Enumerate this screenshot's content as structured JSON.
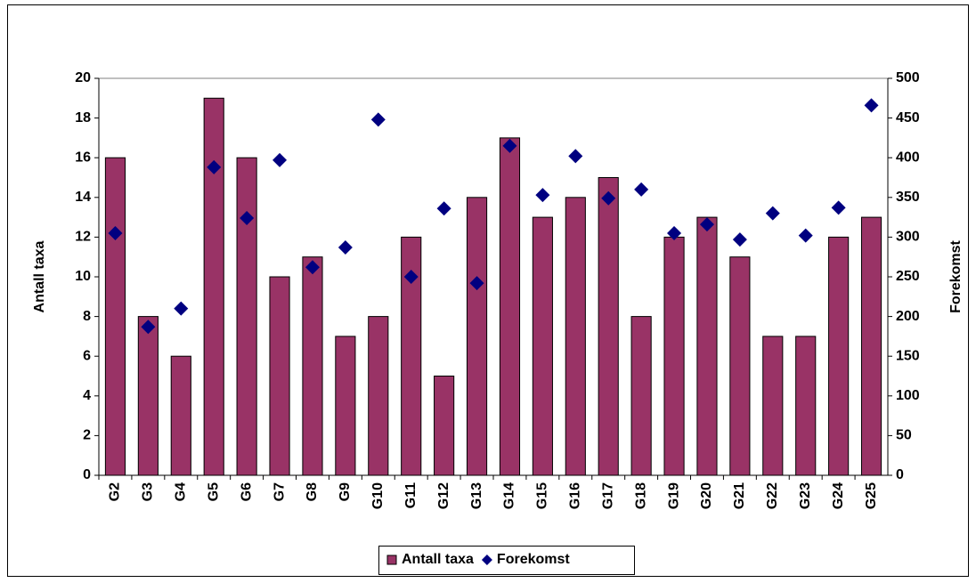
{
  "chart_data": {
    "type": "bar",
    "categories": [
      "G2",
      "G3",
      "G4",
      "G5",
      "G6",
      "G7",
      "G8",
      "G9",
      "G10",
      "G11",
      "G12",
      "G13",
      "G14",
      "G15",
      "G16",
      "G17",
      "G18",
      "G19",
      "G20",
      "G21",
      "G22",
      "G23",
      "G24",
      "G25"
    ],
    "series": [
      {
        "name": "Antall taxa",
        "type": "bar",
        "color": "#993366",
        "values": [
          16,
          8,
          6,
          19,
          16,
          10,
          11,
          7,
          8,
          12,
          5,
          14,
          17,
          13,
          14,
          15,
          8,
          12,
          13,
          11,
          7,
          7,
          12,
          13
        ]
      },
      {
        "name": "Forekomst",
        "type": "scatter",
        "axis": "y2",
        "color": "#000080",
        "values": [
          305,
          187,
          210,
          388,
          324,
          397,
          262,
          287,
          448,
          250,
          336,
          242,
          415,
          353,
          402,
          349,
          360,
          305,
          316,
          297,
          330,
          302,
          337,
          466
        ]
      }
    ],
    "ylabel": "Antall taxa",
    "y2label": "Forekomst",
    "ylim": [
      0,
      20
    ],
    "yticks": [
      0,
      2,
      4,
      6,
      8,
      10,
      12,
      14,
      16,
      18,
      20
    ],
    "y2lim": [
      0,
      500
    ],
    "y2ticks": [
      0,
      50,
      100,
      150,
      200,
      250,
      300,
      350,
      400,
      450,
      500
    ],
    "grid": false,
    "legend": "bottom"
  }
}
